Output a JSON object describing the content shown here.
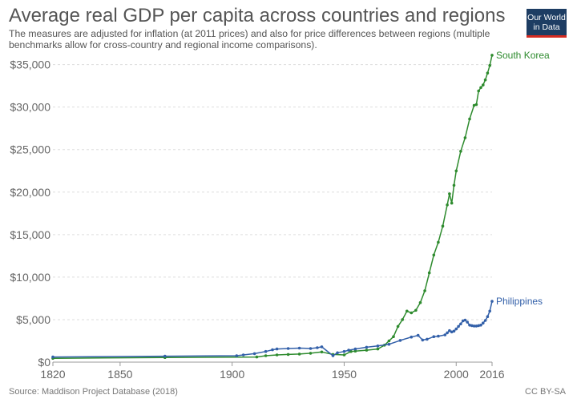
{
  "header": {
    "title": "Average real GDP per capita across countries and regions",
    "subtitle": "The measures are adjusted for inflation (at 2011 prices) and also for price differences between regions (multiple benchmarks allow for cross-country and regional income comparisons)."
  },
  "logo": {
    "line1": "Our World",
    "line2": "in Data"
  },
  "footer": {
    "source": "Source: Maddison Project Database (2018)",
    "license": "CC BY-SA"
  },
  "chart_data": {
    "type": "line",
    "title": "Average real GDP per capita across countries and regions",
    "xlabel": "",
    "ylabel": "",
    "xlim": [
      1820,
      2016
    ],
    "ylim": [
      0,
      36000
    ],
    "x_ticks": [
      1820,
      1850,
      1900,
      1950,
      2000,
      2016
    ],
    "x_tick_labels": [
      "1820",
      "1850",
      "1900",
      "1950",
      "2000",
      "2016"
    ],
    "y_ticks": [
      0,
      5000,
      10000,
      15000,
      20000,
      25000,
      30000,
      35000
    ],
    "y_tick_labels": [
      "$0",
      "$5,000",
      "$10,000",
      "$15,000",
      "$20,000",
      "$25,000",
      "$30,000",
      "$35,000"
    ],
    "grid": true,
    "series": [
      {
        "name": "South Korea",
        "color": "#2e8b2e",
        "points": [
          [
            1820,
            450
          ],
          [
            1870,
            550
          ],
          [
            1911,
            600
          ],
          [
            1915,
            750
          ],
          [
            1920,
            850
          ],
          [
            1925,
            900
          ],
          [
            1930,
            950
          ],
          [
            1935,
            1050
          ],
          [
            1940,
            1200
          ],
          [
            1945,
            900
          ],
          [
            1950,
            850
          ],
          [
            1953,
            1250
          ],
          [
            1955,
            1300
          ],
          [
            1960,
            1400
          ],
          [
            1965,
            1550
          ],
          [
            1968,
            2000
          ],
          [
            1970,
            2500
          ],
          [
            1972,
            3000
          ],
          [
            1974,
            4200
          ],
          [
            1976,
            5000
          ],
          [
            1978,
            6000
          ],
          [
            1980,
            5800
          ],
          [
            1982,
            6100
          ],
          [
            1984,
            7000
          ],
          [
            1986,
            8400
          ],
          [
            1988,
            10500
          ],
          [
            1990,
            12600
          ],
          [
            1992,
            14100
          ],
          [
            1994,
            16000
          ],
          [
            1996,
            18500
          ],
          [
            1997,
            19800
          ],
          [
            1998,
            18700
          ],
          [
            1999,
            20800
          ],
          [
            2000,
            22500
          ],
          [
            2002,
            24800
          ],
          [
            2004,
            26400
          ],
          [
            2006,
            28600
          ],
          [
            2008,
            30200
          ],
          [
            2009,
            30300
          ],
          [
            2010,
            31900
          ],
          [
            2011,
            32300
          ],
          [
            2012,
            32600
          ],
          [
            2013,
            33200
          ],
          [
            2014,
            34000
          ],
          [
            2015,
            34900
          ],
          [
            2016,
            36100
          ]
        ]
      },
      {
        "name": "Philippines",
        "color": "#3360a9",
        "points": [
          [
            1820,
            600
          ],
          [
            1870,
            700
          ],
          [
            1902,
            750
          ],
          [
            1905,
            850
          ],
          [
            1910,
            1000
          ],
          [
            1915,
            1250
          ],
          [
            1918,
            1450
          ],
          [
            1920,
            1550
          ],
          [
            1925,
            1600
          ],
          [
            1930,
            1650
          ],
          [
            1935,
            1600
          ],
          [
            1938,
            1700
          ],
          [
            1940,
            1800
          ],
          [
            1945,
            750
          ],
          [
            1947,
            1100
          ],
          [
            1950,
            1250
          ],
          [
            1952,
            1400
          ],
          [
            1955,
            1550
          ],
          [
            1960,
            1750
          ],
          [
            1965,
            1900
          ],
          [
            1970,
            2100
          ],
          [
            1975,
            2550
          ],
          [
            1980,
            2950
          ],
          [
            1983,
            3150
          ],
          [
            1985,
            2600
          ],
          [
            1987,
            2700
          ],
          [
            1990,
            3000
          ],
          [
            1992,
            3050
          ],
          [
            1995,
            3200
          ],
          [
            1996,
            3450
          ],
          [
            1997,
            3700
          ],
          [
            1998,
            3550
          ],
          [
            1999,
            3650
          ],
          [
            2000,
            3900
          ],
          [
            2001,
            4200
          ],
          [
            2002,
            4500
          ],
          [
            2003,
            4850
          ],
          [
            2004,
            4950
          ],
          [
            2005,
            4700
          ],
          [
            2006,
            4350
          ],
          [
            2007,
            4300
          ],
          [
            2008,
            4250
          ],
          [
            2009,
            4250
          ],
          [
            2010,
            4300
          ],
          [
            2011,
            4350
          ],
          [
            2012,
            4600
          ],
          [
            2013,
            4900
          ],
          [
            2014,
            5350
          ],
          [
            2015,
            6000
          ],
          [
            2016,
            7150
          ]
        ]
      }
    ]
  }
}
